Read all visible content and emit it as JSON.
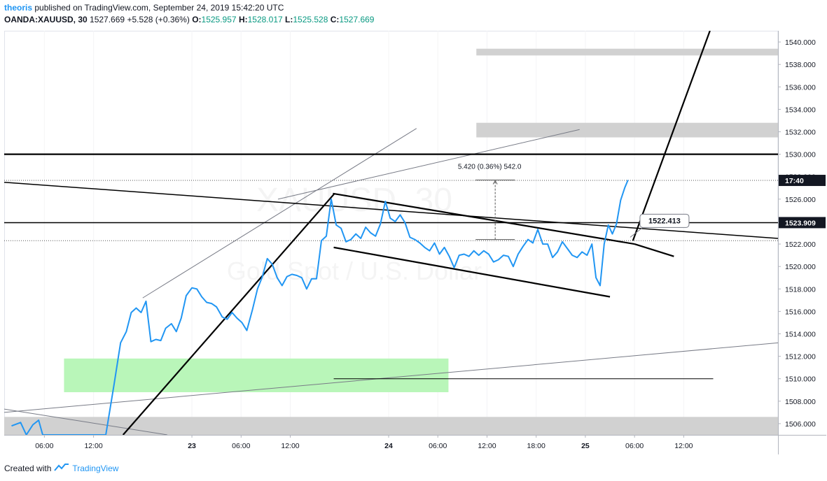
{
  "header": {
    "author": "theoris",
    "published_text": "published on TradingView.com, September 24, 2019 15:42:20 UTC",
    "symbol": "OANDA:XAUUSD, 30",
    "last": "1527.669",
    "change": "+5.528 (+0.36%)",
    "o_label": "O:",
    "o_value": "1525.957",
    "h_label": "H:",
    "h_value": "1528.017",
    "l_label": "L:",
    "l_value": "1525.528",
    "c_label": "C:",
    "c_value": "1527.669"
  },
  "watermark": {
    "line1": "XAUUSD, 30",
    "line2": "Gold Spot / U.S. Dollar"
  },
  "footer": {
    "created_with": "Created with",
    "brand": "TradingView"
  },
  "colors": {
    "price_line": "#2196f3",
    "demand_zone": "#b9f6b9",
    "supply_zone": "#d1d1d1",
    "trendline": "#000000"
  },
  "chart_data": {
    "type": "line",
    "title": "OANDA:XAUUSD, 30",
    "xlabel": "",
    "ylabel": "",
    "ylim": [
      1505.0,
      1541.0
    ],
    "y_ticks": [
      "1506.000",
      "1508.000",
      "1510.000",
      "1512.000",
      "1514.000",
      "1516.000",
      "1518.000",
      "1520.000",
      "1522.000",
      "1524.000",
      "1526.000",
      "1528.000",
      "1530.000",
      "1532.000",
      "1534.000",
      "1536.000",
      "1538.000",
      "1540.000"
    ],
    "x_ticks": [
      "06:00",
      "12:00",
      "23",
      "06:00",
      "12:00",
      "24",
      "06:00",
      "12:00",
      "18:00",
      "25",
      "06:00",
      "12:00"
    ],
    "x_tick_hours": [
      6,
      12,
      24,
      30,
      36,
      48,
      54,
      60,
      66,
      72,
      78,
      84
    ],
    "x_range_hours": [
      1.1,
      95.5
    ],
    "series": [
      {
        "values": [
          [
            2.0,
            1505.8
          ],
          [
            3.1,
            1506.1
          ],
          [
            3.8,
            1505.0
          ],
          [
            4.6,
            1505.9
          ],
          [
            5.3,
            1506.3
          ],
          [
            5.8,
            1505.0
          ],
          [
            13.5,
            1505.0
          ],
          [
            14.5,
            1509.5
          ],
          [
            15.3,
            1513.2
          ],
          [
            16.0,
            1514.2
          ],
          [
            16.6,
            1515.9
          ],
          [
            17.2,
            1516.3
          ],
          [
            17.8,
            1515.9
          ],
          [
            18.4,
            1516.9
          ],
          [
            19.0,
            1513.3
          ],
          [
            19.6,
            1513.5
          ],
          [
            20.2,
            1513.4
          ],
          [
            20.8,
            1514.5
          ],
          [
            21.5,
            1514.9
          ],
          [
            22.1,
            1514.2
          ],
          [
            22.7,
            1515.4
          ],
          [
            23.3,
            1517.4
          ],
          [
            24.0,
            1518.1
          ],
          [
            24.6,
            1518.0
          ],
          [
            25.2,
            1517.3
          ],
          [
            25.8,
            1516.8
          ],
          [
            26.4,
            1516.7
          ],
          [
            27.0,
            1516.4
          ],
          [
            27.7,
            1515.5
          ],
          [
            28.3,
            1515.3
          ],
          [
            28.9,
            1515.9
          ],
          [
            29.5,
            1515.4
          ],
          [
            30.1,
            1515.0
          ],
          [
            30.7,
            1514.3
          ],
          [
            31.4,
            1516.2
          ],
          [
            32.0,
            1518.0
          ],
          [
            32.6,
            1519.1
          ],
          [
            33.2,
            1520.7
          ],
          [
            33.8,
            1520.2
          ],
          [
            34.4,
            1519.0
          ],
          [
            35.0,
            1518.3
          ],
          [
            35.6,
            1519.1
          ],
          [
            36.2,
            1519.3
          ],
          [
            36.8,
            1519.2
          ],
          [
            37.4,
            1519.0
          ],
          [
            38.0,
            1518.0
          ],
          [
            38.6,
            1518.9
          ],
          [
            39.2,
            1518.9
          ],
          [
            39.8,
            1522.3
          ],
          [
            40.4,
            1522.7
          ],
          [
            41.0,
            1526.0
          ],
          [
            41.6,
            1523.7
          ],
          [
            42.2,
            1523.4
          ],
          [
            42.8,
            1522.2
          ],
          [
            43.4,
            1522.4
          ],
          [
            44.0,
            1522.9
          ],
          [
            44.6,
            1522.5
          ],
          [
            45.2,
            1523.5
          ],
          [
            45.8,
            1523.0
          ],
          [
            46.4,
            1522.7
          ],
          [
            47.0,
            1523.8
          ],
          [
            47.6,
            1525.8
          ],
          [
            48.2,
            1524.3
          ],
          [
            48.8,
            1524.0
          ],
          [
            49.4,
            1524.6
          ],
          [
            50.0,
            1523.9
          ],
          [
            50.6,
            1522.6
          ],
          [
            51.2,
            1522.4
          ],
          [
            51.8,
            1522.1
          ],
          [
            52.4,
            1521.7
          ],
          [
            53.0,
            1521.4
          ],
          [
            53.6,
            1522.1
          ],
          [
            54.2,
            1521.1
          ],
          [
            54.8,
            1521.7
          ],
          [
            55.4,
            1520.9
          ],
          [
            56.0,
            1519.9
          ],
          [
            56.6,
            1521.0
          ],
          [
            57.2,
            1521.1
          ],
          [
            57.8,
            1520.9
          ],
          [
            58.4,
            1521.4
          ],
          [
            59.0,
            1521.0
          ],
          [
            59.6,
            1521.4
          ],
          [
            60.2,
            1521.1
          ],
          [
            60.8,
            1520.4
          ],
          [
            61.4,
            1520.6
          ],
          [
            62.0,
            1521.0
          ],
          [
            62.6,
            1520.9
          ],
          [
            63.2,
            1520.0
          ],
          [
            63.8,
            1521.1
          ],
          [
            64.4,
            1521.8
          ],
          [
            65.0,
            1522.4
          ],
          [
            65.6,
            1522.1
          ],
          [
            66.2,
            1523.3
          ],
          [
            66.8,
            1522.0
          ],
          [
            67.4,
            1522.0
          ],
          [
            68.0,
            1520.8
          ],
          [
            68.6,
            1521.3
          ],
          [
            69.2,
            1522.2
          ],
          [
            69.8,
            1521.6
          ],
          [
            70.4,
            1521.0
          ],
          [
            71.0,
            1520.8
          ],
          [
            71.6,
            1521.3
          ],
          [
            72.2,
            1521.0
          ],
          [
            72.8,
            1522.0
          ],
          [
            73.3,
            1519.0
          ],
          [
            73.8,
            1518.3
          ],
          [
            74.3,
            1522.0
          ],
          [
            74.8,
            1523.7
          ],
          [
            75.3,
            1522.9
          ],
          [
            75.8,
            1523.8
          ],
          [
            76.3,
            1525.9
          ],
          [
            76.8,
            1527.0
          ],
          [
            77.2,
            1527.7
          ]
        ]
      }
    ],
    "zones": [
      {
        "kind": "demand",
        "x0": 8.4,
        "x1": 55.3,
        "y0": 1508.8,
        "y1": 1511.8
      },
      {
        "kind": "supply",
        "x0": 58.7,
        "x1": 95.5,
        "y0": 1531.5,
        "y1": 1532.8
      },
      {
        "kind": "supply",
        "x0": 58.7,
        "x1": 95.5,
        "y0": 1538.8,
        "y1": 1539.4
      },
      {
        "kind": "supply",
        "x0": 1.1,
        "x1": 95.5,
        "y0": 1505.0,
        "y1": 1506.6
      }
    ],
    "trendlines": [
      {
        "x0": 15.6,
        "y0": 1505.0,
        "x1": 41.4,
        "y1": 1526.5,
        "w": 2.2
      },
      {
        "x0": 77.8,
        "y0": 1522.3,
        "x1": 87.2,
        "y1": 1541.0,
        "w": 2.2
      },
      {
        "x0": 41.2,
        "y0": 1526.5,
        "x1": 78.0,
        "y1": 1522.0,
        "w": 2.2
      },
      {
        "x0": 78.0,
        "y0": 1522.0,
        "x1": 82.8,
        "y1": 1520.9,
        "w": 2.2
      },
      {
        "x0": 41.3,
        "y0": 1521.7,
        "x1": 75.0,
        "y1": 1517.3,
        "w": 2.2
      },
      {
        "x0": 1.1,
        "y0": 1527.5,
        "x1": 95.5,
        "y1": 1522.5,
        "w": 1.5
      },
      {
        "x0": 1.1,
        "y0": 1530.0,
        "x1": 95.5,
        "y1": 1530.0,
        "w": 2.2
      },
      {
        "x0": 1.1,
        "y0": 1523.9,
        "x1": 95.5,
        "y1": 1523.9,
        "w": 1.5
      },
      {
        "x0": 41.3,
        "y0": 1510.0,
        "x1": 87.6,
        "y1": 1510.0,
        "w": 1.0
      }
    ],
    "thin_lines": [
      {
        "x0": 18.0,
        "y0": 1517.2,
        "x1": 51.4,
        "y1": 1532.3
      },
      {
        "x0": 34.5,
        "y0": 1526.0,
        "x1": 71.3,
        "y1": 1532.2
      },
      {
        "x0": 1.1,
        "y0": 1507.0,
        "x1": 95.5,
        "y1": 1513.2
      },
      {
        "x0": 1.1,
        "y0": 1507.3,
        "x1": 21.0,
        "y1": 1505.0
      }
    ],
    "dotted_levels": [
      1527.669,
      1522.3
    ],
    "measure": {
      "x": 61.0,
      "y0": 1522.4,
      "y1": 1527.7,
      "label": "5.420 (0.36%) 542.0"
    },
    "callout": {
      "x": 72.0,
      "y": 1524.1,
      "label": "1522.413"
    },
    "price_labels": [
      {
        "y": 1527.669,
        "text": "17:40",
        "style": "dark"
      },
      {
        "y": 1523.909,
        "text": "1523.909",
        "style": "dark"
      }
    ]
  }
}
